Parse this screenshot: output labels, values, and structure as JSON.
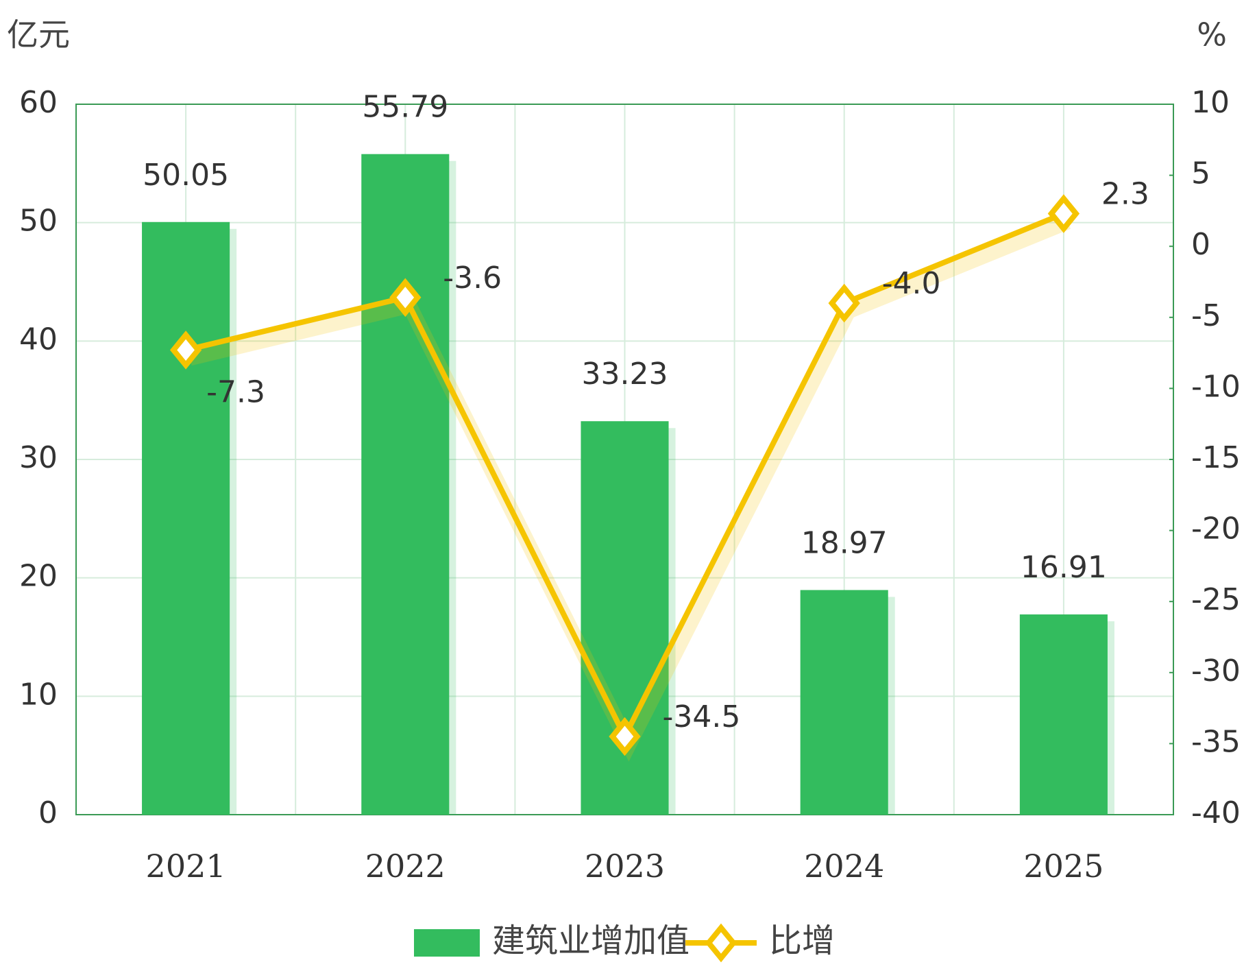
{
  "chart_data": {
    "type": "bar",
    "y_label": "亿元",
    "y2_label": "%",
    "categories": [
      "2021",
      "2022",
      "2023",
      "2024",
      "2025"
    ],
    "series": [
      {
        "name": "建筑业增加值",
        "type": "bar",
        "color": "#33bc5e",
        "values": [
          50.05,
          55.79,
          33.23,
          18.97,
          16.91
        ]
      },
      {
        "name": "比增",
        "type": "line",
        "axis": "y2",
        "color": "#f5c400",
        "values": [
          -7.3,
          -3.6,
          -34.5,
          -4.0,
          2.3
        ],
        "value_labels": [
          "-7.3",
          "-3.6",
          "-34.5",
          "-4.0",
          "2.3"
        ]
      }
    ],
    "ylim": [
      0,
      60
    ],
    "yticks": [
      0,
      10,
      20,
      30,
      40,
      50,
      60
    ],
    "y2lim": [
      -40,
      10
    ],
    "y2ticks": [
      -40,
      -35,
      -30,
      -25,
      -20,
      -15,
      -10,
      -5,
      0,
      5,
      10
    ],
    "grid": true,
    "legend": "bottom"
  }
}
